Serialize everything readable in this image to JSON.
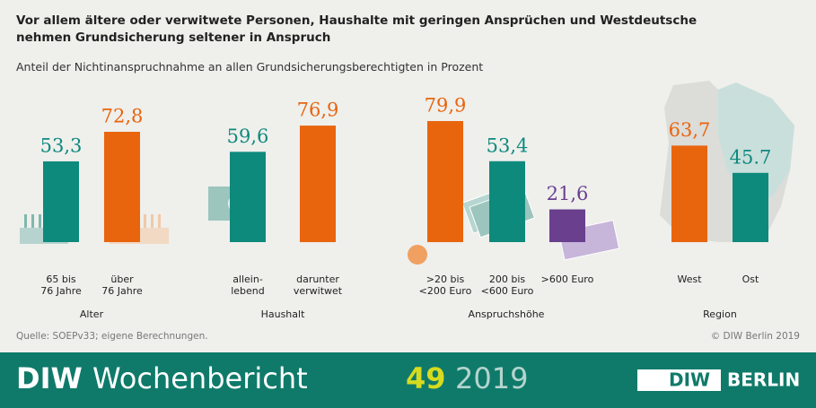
{
  "chart_data": {
    "type": "bar",
    "title": "Vor allem ältere oder verwitwete Personen, Haushalte mit geringen Ansprüchen und Westdeutsche nehmen Grundsicherung seltener in Anspruch",
    "subtitle": "Anteil der Nichtinanspruchnahme an allen Grundsicherungsberechtigten in Prozent",
    "groups": [
      {
        "name": "Alter",
        "categories": [
          [
            "65 bis",
            "76 Jahre"
          ],
          [
            "über",
            "76 Jahre"
          ]
        ],
        "values": [
          53.3,
          72.8
        ],
        "value_labels": [
          "53,3",
          "72,8"
        ],
        "colors": [
          "#0e8a7d",
          "#e8650e"
        ]
      },
      {
        "name": "Haushalt",
        "categories": [
          [
            "allein-",
            "lebend"
          ],
          [
            "darunter",
            "verwitwet"
          ]
        ],
        "values": [
          59.6,
          76.9
        ],
        "value_labels": [
          "59,6",
          "76,9"
        ],
        "colors": [
          "#0e8a7d",
          "#e8650e"
        ]
      },
      {
        "name": "Anspruchshöhe",
        "categories": [
          [
            ">20 bis",
            "<200 Euro"
          ],
          [
            "200 bis",
            "<600 Euro"
          ],
          [
            ">600 Euro"
          ]
        ],
        "values": [
          79.9,
          53.4,
          21.6
        ],
        "value_labels": [
          "79,9",
          "53,4",
          "21,6"
        ],
        "colors": [
          "#e8650e",
          "#0e8a7d",
          "#6a3f8e"
        ]
      },
      {
        "name": "Region",
        "categories": [
          [
            "West"
          ],
          [
            "Ost"
          ]
        ],
        "values": [
          63.7,
          45.7
        ],
        "value_labels": [
          "63,7",
          "45.7"
        ],
        "colors": [
          "#e8650e",
          "#0e8a7d"
        ]
      }
    ],
    "source": "Quelle: SOEPv33; eigene Berechnungen.",
    "copyright": "© DIW Berlin 2019"
  },
  "footer": {
    "brand": "DIW",
    "publication": "Wochenbericht",
    "issue": "49",
    "year": "2019",
    "logo_left": "DIW",
    "logo_right": "BERLIN"
  }
}
